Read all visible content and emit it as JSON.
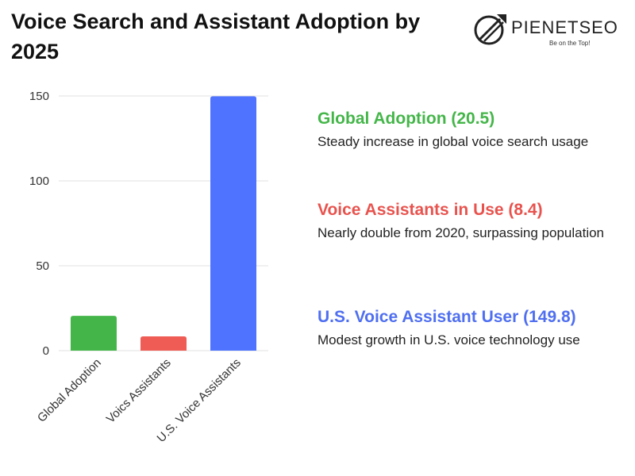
{
  "header": {
    "title": "Voice Search and Assistant Adoption by 2025"
  },
  "brand": {
    "name": "PIENETSEO",
    "tagline": "Be on the Top!"
  },
  "chart_data": {
    "type": "bar",
    "title": "Voice Search and Assistant Adoption by 2025",
    "categories": [
      "Global Adoption",
      "Voics Assistants",
      "U.S. Voice Assistants"
    ],
    "values": [
      20.5,
      8.4,
      149.8
    ],
    "colors": [
      "#44b649",
      "#ef5c55",
      "#4f73ff"
    ],
    "ylim": [
      0,
      150
    ],
    "yticks": [
      "0",
      "50",
      "100",
      "150"
    ],
    "xlabel": "",
    "ylabel": "",
    "grid": true,
    "legend": "none"
  },
  "annotations": [
    {
      "heading": "Global Adoption (20.5)",
      "color": "#44b649",
      "text": "Steady increase in global voice search usage"
    },
    {
      "heading": "Voice Assistants in Use (8.4)",
      "color": "#e8534e",
      "text": "Nearly double from 2020, surpassing population"
    },
    {
      "heading": "U.S. Voice Assistant User (149.8)",
      "color": "#4f6ff0",
      "text": "Modest growth in U.S. voice technology use"
    }
  ]
}
